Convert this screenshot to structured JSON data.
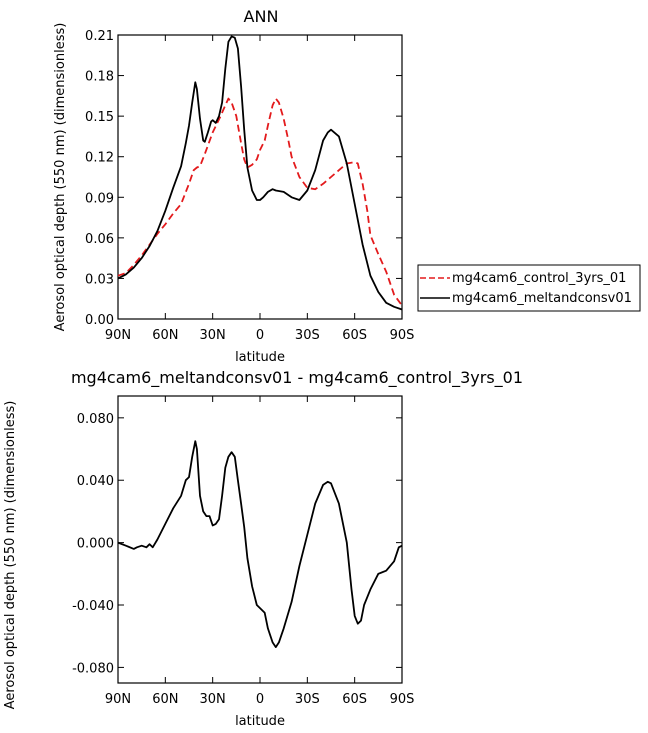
{
  "chart_data": [
    {
      "type": "line",
      "title": "ANN",
      "xlabel": "latitude",
      "ylabel": "Aerosol optical depth (550 nm) (dimensionless)",
      "xlim": [
        90,
        -90
      ],
      "ylim": [
        0,
        0.21
      ],
      "xticks": [
        {
          "value": 90,
          "label": "90N"
        },
        {
          "value": 60,
          "label": "60N"
        },
        {
          "value": 30,
          "label": "30N"
        },
        {
          "value": 0,
          "label": "0"
        },
        {
          "value": -30,
          "label": "30S"
        },
        {
          "value": -60,
          "label": "60S"
        },
        {
          "value": -90,
          "label": "90S"
        }
      ],
      "yticks": [
        {
          "value": 0.0,
          "label": "0.00"
        },
        {
          "value": 0.03,
          "label": "0.03"
        },
        {
          "value": 0.06,
          "label": "0.06"
        },
        {
          "value": 0.09,
          "label": "0.09"
        },
        {
          "value": 0.12,
          "label": "0.12"
        },
        {
          "value": 0.15,
          "label": "0.15"
        },
        {
          "value": 0.18,
          "label": "0.18"
        },
        {
          "value": 0.21,
          "label": "0.21"
        }
      ],
      "legend": "right",
      "series": [
        {
          "name": "mg4cam6_control_3yrs_01",
          "color": "#e31a1c",
          "style": "dashed",
          "x": [
            90,
            85,
            80,
            75,
            70,
            65,
            60,
            55,
            50,
            45,
            42,
            40,
            38,
            35,
            30,
            25,
            22,
            20,
            18,
            15,
            12,
            10,
            8,
            5,
            2,
            0,
            -3,
            -5,
            -8,
            -10,
            -12,
            -15,
            -18,
            -20,
            -25,
            -30,
            -35,
            -40,
            -45,
            -50,
            -55,
            -60,
            -62,
            -65,
            -68,
            -70,
            -75,
            -80,
            -85,
            -90
          ],
          "y": [
            0.032,
            0.034,
            0.04,
            0.047,
            0.055,
            0.063,
            0.07,
            0.078,
            0.085,
            0.1,
            0.11,
            0.112,
            0.113,
            0.122,
            0.138,
            0.15,
            0.158,
            0.163,
            0.16,
            0.15,
            0.13,
            0.118,
            0.112,
            0.114,
            0.118,
            0.125,
            0.132,
            0.143,
            0.158,
            0.163,
            0.16,
            0.148,
            0.132,
            0.12,
            0.105,
            0.097,
            0.096,
            0.1,
            0.105,
            0.11,
            0.115,
            0.116,
            0.115,
            0.1,
            0.08,
            0.062,
            0.048,
            0.035,
            0.018,
            0.01
          ]
        },
        {
          "name": "mg4cam6_meltandconsv01",
          "color": "#000000",
          "style": "solid",
          "x": [
            90,
            85,
            80,
            75,
            70,
            65,
            60,
            55,
            50,
            47,
            45,
            43,
            41,
            40,
            38,
            36,
            35,
            33,
            31,
            30,
            28,
            26,
            24,
            22,
            20,
            18,
            16,
            14,
            12,
            10,
            8,
            5,
            2,
            0,
            -2,
            -5,
            -8,
            -10,
            -15,
            -20,
            -25,
            -30,
            -35,
            -40,
            -43,
            -45,
            -50,
            -55,
            -60,
            -65,
            -70,
            -75,
            -80,
            -85,
            -90
          ],
          "y": [
            0.03,
            0.033,
            0.038,
            0.045,
            0.054,
            0.065,
            0.08,
            0.097,
            0.113,
            0.13,
            0.143,
            0.16,
            0.175,
            0.17,
            0.148,
            0.132,
            0.131,
            0.138,
            0.146,
            0.147,
            0.145,
            0.15,
            0.16,
            0.185,
            0.205,
            0.209,
            0.208,
            0.2,
            0.172,
            0.14,
            0.112,
            0.095,
            0.088,
            0.088,
            0.09,
            0.094,
            0.096,
            0.095,
            0.094,
            0.09,
            0.088,
            0.095,
            0.11,
            0.132,
            0.138,
            0.14,
            0.135,
            0.115,
            0.085,
            0.055,
            0.032,
            0.02,
            0.012,
            0.009,
            0.007
          ]
        }
      ]
    },
    {
      "type": "line",
      "title": "mg4cam6_meltandconsv01 - mg4cam6_control_3yrs_01",
      "xlabel": "latitude",
      "ylabel": "Aerosol optical depth (550 nm) (dimensionless)",
      "xlim": [
        90,
        -90
      ],
      "ylim": [
        -0.09,
        0.094
      ],
      "xticks": [
        {
          "value": 90,
          "label": "90N"
        },
        {
          "value": 60,
          "label": "60N"
        },
        {
          "value": 30,
          "label": "30N"
        },
        {
          "value": 0,
          "label": "0"
        },
        {
          "value": -30,
          "label": "30S"
        },
        {
          "value": -60,
          "label": "60S"
        },
        {
          "value": -90,
          "label": "90S"
        }
      ],
      "yticks": [
        {
          "value": 0.08,
          "label": "0.080"
        },
        {
          "value": 0.04,
          "label": "0.040"
        },
        {
          "value": 0.0,
          "label": "0.000"
        },
        {
          "value": -0.04,
          "label": "-0.040"
        },
        {
          "value": -0.08,
          "label": "-0.080"
        }
      ],
      "series": [
        {
          "name": "",
          "color": "#000000",
          "style": "solid",
          "x": [
            90,
            85,
            80,
            78,
            75,
            72,
            70,
            68,
            65,
            60,
            55,
            50,
            47,
            45,
            43,
            41,
            40,
            38,
            36,
            34,
            32,
            30,
            28,
            26,
            24,
            22,
            20,
            18,
            16,
            14,
            12,
            10,
            8,
            5,
            2,
            0,
            -3,
            -5,
            -8,
            -10,
            -12,
            -15,
            -20,
            -25,
            -30,
            -35,
            -40,
            -43,
            -45,
            -50,
            -55,
            -58,
            -60,
            -62,
            -64,
            -66,
            -70,
            -75,
            -80,
            -85,
            -88,
            -90
          ],
          "y": [
            0.0,
            -0.002,
            -0.004,
            -0.003,
            -0.002,
            -0.003,
            -0.001,
            -0.003,
            0.002,
            0.012,
            0.022,
            0.03,
            0.04,
            0.042,
            0.055,
            0.065,
            0.06,
            0.03,
            0.02,
            0.017,
            0.017,
            0.011,
            0.012,
            0.015,
            0.03,
            0.048,
            0.055,
            0.058,
            0.055,
            0.04,
            0.025,
            0.01,
            -0.01,
            -0.028,
            -0.04,
            -0.042,
            -0.045,
            -0.055,
            -0.064,
            -0.067,
            -0.064,
            -0.055,
            -0.038,
            -0.015,
            0.005,
            0.025,
            0.037,
            0.039,
            0.038,
            0.025,
            0.0,
            -0.03,
            -0.047,
            -0.052,
            -0.05,
            -0.04,
            -0.03,
            -0.02,
            -0.018,
            -0.012,
            -0.003,
            -0.002
          ]
        }
      ]
    }
  ]
}
